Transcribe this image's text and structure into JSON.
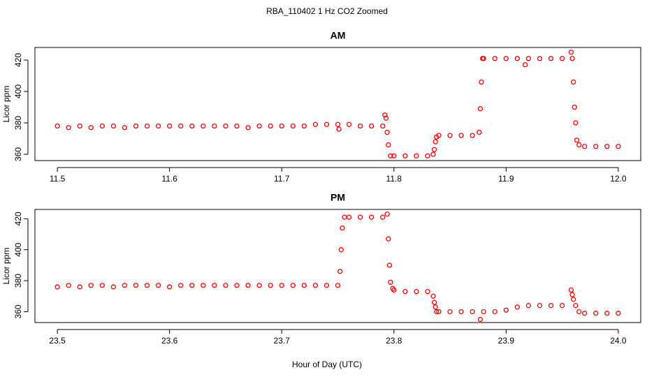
{
  "title": "RBA_110402  1 Hz CO2 Zoomed",
  "xlabel": "Hour of Day (UTC)",
  "chart_data": [
    {
      "type": "scatter",
      "title": "AM",
      "ylabel": "Licor ppm",
      "color": "#ff0000",
      "xlim": [
        11.48,
        12.02
      ],
      "ylim": [
        356,
        428
      ],
      "xticks": [
        11.5,
        11.6,
        11.7,
        11.8,
        11.9,
        {
          "value": 12,
          "label": "12.0"
        }
      ],
      "yticks": [
        360,
        380,
        400,
        420
      ],
      "x": [
        11.5,
        11.51,
        11.52,
        11.53,
        11.54,
        11.55,
        11.56,
        11.57,
        11.58,
        11.59,
        11.6,
        11.61,
        11.62,
        11.63,
        11.64,
        11.65,
        11.66,
        11.67,
        11.68,
        11.69,
        11.7,
        11.71,
        11.72,
        11.73,
        11.74,
        11.75,
        11.751,
        11.76,
        11.77,
        11.78,
        11.79,
        11.792,
        11.793,
        11.794,
        11.795,
        11.797,
        11.8,
        11.81,
        11.82,
        11.83,
        11.835,
        11.836,
        11.837,
        11.838,
        11.84,
        11.85,
        11.86,
        11.87,
        11.876,
        11.877,
        11.878,
        11.879,
        11.88,
        11.89,
        11.9,
        11.91,
        11.917,
        11.92,
        11.93,
        11.94,
        11.95,
        11.958,
        11.959,
        11.96,
        11.961,
        11.962,
        11.963,
        11.965,
        11.97,
        11.98,
        11.99,
        12.0
      ],
      "y": [
        378,
        377,
        378,
        377,
        378,
        378,
        377,
        378,
        378,
        378,
        378,
        378,
        378,
        378,
        378,
        378,
        378,
        377,
        378,
        378,
        378,
        378,
        378,
        379,
        379,
        379,
        376,
        379,
        378,
        378,
        378,
        385,
        383,
        374,
        366,
        359,
        359,
        359,
        359,
        359,
        360,
        363,
        368,
        371,
        372,
        372,
        372,
        372,
        374,
        389,
        406,
        421,
        421,
        421,
        421,
        421,
        417,
        421,
        421,
        421,
        421,
        425,
        421,
        406,
        390,
        380,
        369,
        366,
        365,
        365,
        365,
        365
      ]
    },
    {
      "type": "scatter",
      "title": "PM",
      "ylabel": "Licor ppm",
      "color": "#ff0000",
      "xlim": [
        23.48,
        24.02
      ],
      "ylim": [
        353,
        426
      ],
      "xticks": [
        23.5,
        23.6,
        23.7,
        23.8,
        23.9,
        {
          "value": 24,
          "label": "24.0"
        }
      ],
      "yticks": [
        360,
        380,
        400,
        420
      ],
      "x": [
        23.5,
        23.51,
        23.52,
        23.53,
        23.54,
        23.55,
        23.56,
        23.57,
        23.58,
        23.59,
        23.6,
        23.61,
        23.62,
        23.63,
        23.64,
        23.65,
        23.66,
        23.67,
        23.68,
        23.69,
        23.7,
        23.71,
        23.72,
        23.73,
        23.74,
        23.75,
        23.752,
        23.753,
        23.754,
        23.756,
        23.76,
        23.77,
        23.78,
        23.79,
        23.794,
        23.795,
        23.796,
        23.797,
        23.799,
        23.8,
        23.81,
        23.82,
        23.83,
        23.835,
        23.836,
        23.837,
        23.838,
        23.84,
        23.85,
        23.86,
        23.87,
        23.877,
        23.88,
        23.89,
        23.9,
        23.91,
        23.92,
        23.93,
        23.94,
        23.95,
        23.958,
        23.959,
        23.96,
        23.962,
        23.965,
        23.97,
        23.98,
        23.99,
        24.0
      ],
      "y": [
        376,
        377,
        376,
        377,
        377,
        376,
        377,
        377,
        377,
        377,
        376,
        377,
        377,
        377,
        377,
        377,
        377,
        377,
        377,
        377,
        377,
        377,
        377,
        377,
        377,
        377,
        386,
        400,
        414,
        421,
        421,
        421,
        421,
        421,
        423,
        407,
        390,
        379,
        375,
        374,
        373,
        373,
        373,
        370,
        366,
        363,
        360,
        360,
        360,
        360,
        360,
        355,
        360,
        360,
        361,
        363,
        364,
        364,
        364,
        364,
        374,
        371,
        368,
        364,
        360,
        359,
        359,
        359,
        359
      ]
    }
  ]
}
